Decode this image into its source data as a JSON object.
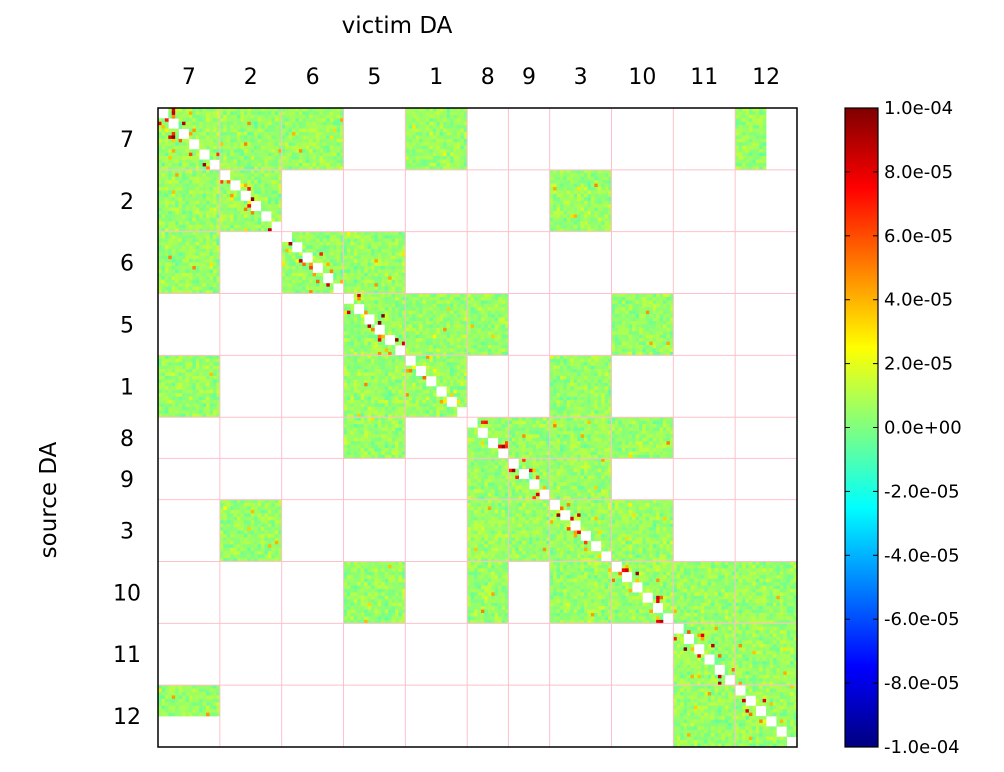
{
  "chart_data": {
    "type": "heatmap",
    "xlabel": "victim DA",
    "ylabel": "source DA",
    "categories": [
      "7",
      "2",
      "6",
      "5",
      "1",
      "8",
      "9",
      "3",
      "10",
      "11",
      "12"
    ],
    "category_cells": [
      18,
      18,
      18,
      18,
      18,
      12,
      12,
      18,
      18,
      18,
      18
    ],
    "value_range": [
      -0.0001,
      0.0001
    ],
    "colormap": "jet",
    "empty_color": "#ffffff",
    "grid_color": "#ffc0cb",
    "colorbar": {
      "ticks": [
        0.0001,
        8e-05,
        6e-05,
        4e-05,
        2e-05,
        0,
        -2e-05,
        -4e-05,
        -6e-05,
        -8e-05,
        -0.0001
      ],
      "tick_labels": [
        "1.0e-04",
        "8.0e-05",
        "6.0e-05",
        "4.0e-05",
        "2.0e-05",
        "0.0e+00",
        "-2.0e-05",
        "-4.0e-05",
        "-6.0e-05",
        "-8.0e-05",
        "-1.0e-04"
      ]
    },
    "typical_value_mean": 5e-06,
    "typical_value_spread": 1.2e-05,
    "diagonal": "self-pairs empty (white); near-diagonal cells show strong positive values up to 1.0e-04",
    "blocks": [
      {
        "source": "7",
        "victim": "7"
      },
      {
        "source": "7",
        "victim": "2"
      },
      {
        "source": "7",
        "victim": "6"
      },
      {
        "source": "7",
        "victim": "1"
      },
      {
        "source": "7",
        "victim": "12",
        "victim_frac": [
          0,
          0.5
        ]
      },
      {
        "source": "2",
        "victim": "7"
      },
      {
        "source": "2",
        "victim": "2"
      },
      {
        "source": "2",
        "victim": "3"
      },
      {
        "source": "6",
        "victim": "7"
      },
      {
        "source": "6",
        "victim": "6"
      },
      {
        "source": "6",
        "victim": "5"
      },
      {
        "source": "5",
        "victim": "5"
      },
      {
        "source": "5",
        "victim": "1"
      },
      {
        "source": "5",
        "victim": "8"
      },
      {
        "source": "5",
        "victim": "10"
      },
      {
        "source": "1",
        "victim": "7"
      },
      {
        "source": "1",
        "victim": "5"
      },
      {
        "source": "1",
        "victim": "1"
      },
      {
        "source": "1",
        "victim": "3"
      },
      {
        "source": "8",
        "victim": "5"
      },
      {
        "source": "8",
        "victim": "8"
      },
      {
        "source": "8",
        "victim": "9"
      },
      {
        "source": "8",
        "victim": "3"
      },
      {
        "source": "8",
        "victim": "10"
      },
      {
        "source": "9",
        "victim": "8"
      },
      {
        "source": "9",
        "victim": "9"
      },
      {
        "source": "9",
        "victim": "3"
      },
      {
        "source": "3",
        "victim": "2"
      },
      {
        "source": "3",
        "victim": "8"
      },
      {
        "source": "3",
        "victim": "9"
      },
      {
        "source": "3",
        "victim": "3"
      },
      {
        "source": "3",
        "victim": "10"
      },
      {
        "source": "10",
        "victim": "5"
      },
      {
        "source": "10",
        "victim": "8"
      },
      {
        "source": "10",
        "victim": "3"
      },
      {
        "source": "10",
        "victim": "10"
      },
      {
        "source": "10",
        "victim": "11"
      },
      {
        "source": "10",
        "victim": "12"
      },
      {
        "source": "11",
        "victim": "11"
      },
      {
        "source": "11",
        "victim": "12"
      },
      {
        "source": "12",
        "victim": "7",
        "source_frac": [
          0,
          0.5
        ]
      },
      {
        "source": "12",
        "victim": "11"
      },
      {
        "source": "12",
        "victim": "12"
      }
    ]
  }
}
